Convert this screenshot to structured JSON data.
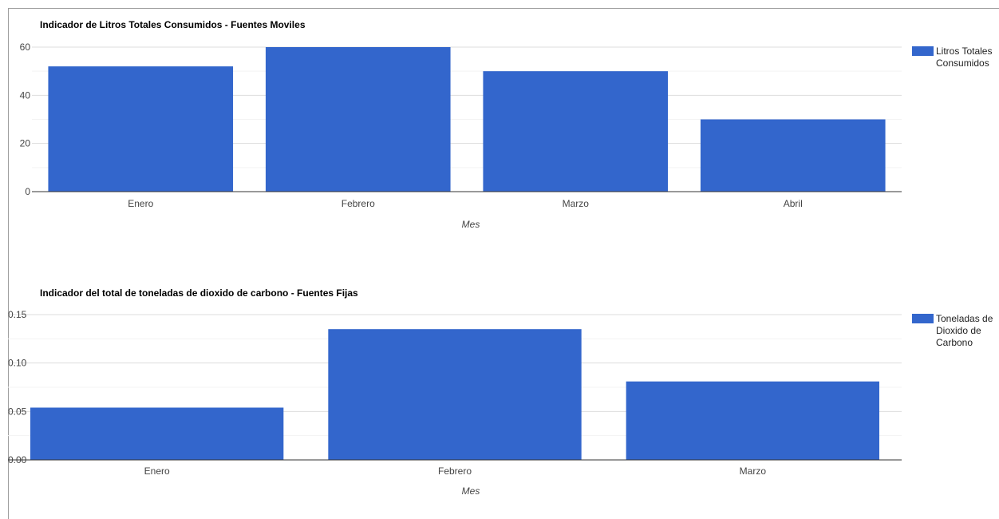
{
  "chart_data": [
    {
      "type": "bar",
      "title": "Indicador de Litros Totales Consumidos - Fuentes Moviles",
      "xlabel": "Mes",
      "ylabel": "",
      "categories": [
        "Enero",
        "Febrero",
        "Marzo",
        "Abril"
      ],
      "series": [
        {
          "name": "Litros Totales Consumidos",
          "values": [
            52,
            60,
            50,
            30
          ]
        }
      ],
      "legend_lines": [
        "Litros Totales",
        "Consumidos"
      ],
      "ylim": [
        0,
        60
      ],
      "yticks": [
        0,
        20,
        40,
        60
      ],
      "ytick_labels": [
        "0",
        "20",
        "40",
        "60"
      ],
      "grid": true,
      "legend": "right",
      "color": "#3366cc"
    },
    {
      "type": "bar",
      "title": "Indicador del total de toneladas de dioxido de carbono - Fuentes Fijas",
      "xlabel": "Mes",
      "ylabel": "",
      "categories": [
        "Enero",
        "Febrero",
        "Marzo"
      ],
      "series": [
        {
          "name": "Toneladas de Dioxido de Carbono",
          "values": [
            0.054,
            0.135,
            0.081
          ]
        }
      ],
      "legend_lines": [
        "Toneladas de",
        "Dioxido de",
        "Carbono"
      ],
      "ylim": [
        0,
        0.15
      ],
      "yticks": [
        0,
        0.05,
        0.1,
        0.15
      ],
      "ytick_labels": [
        "0.00",
        "0.05",
        "0.10",
        "0.15"
      ],
      "grid": true,
      "legend": "right",
      "color": "#3366cc"
    }
  ]
}
